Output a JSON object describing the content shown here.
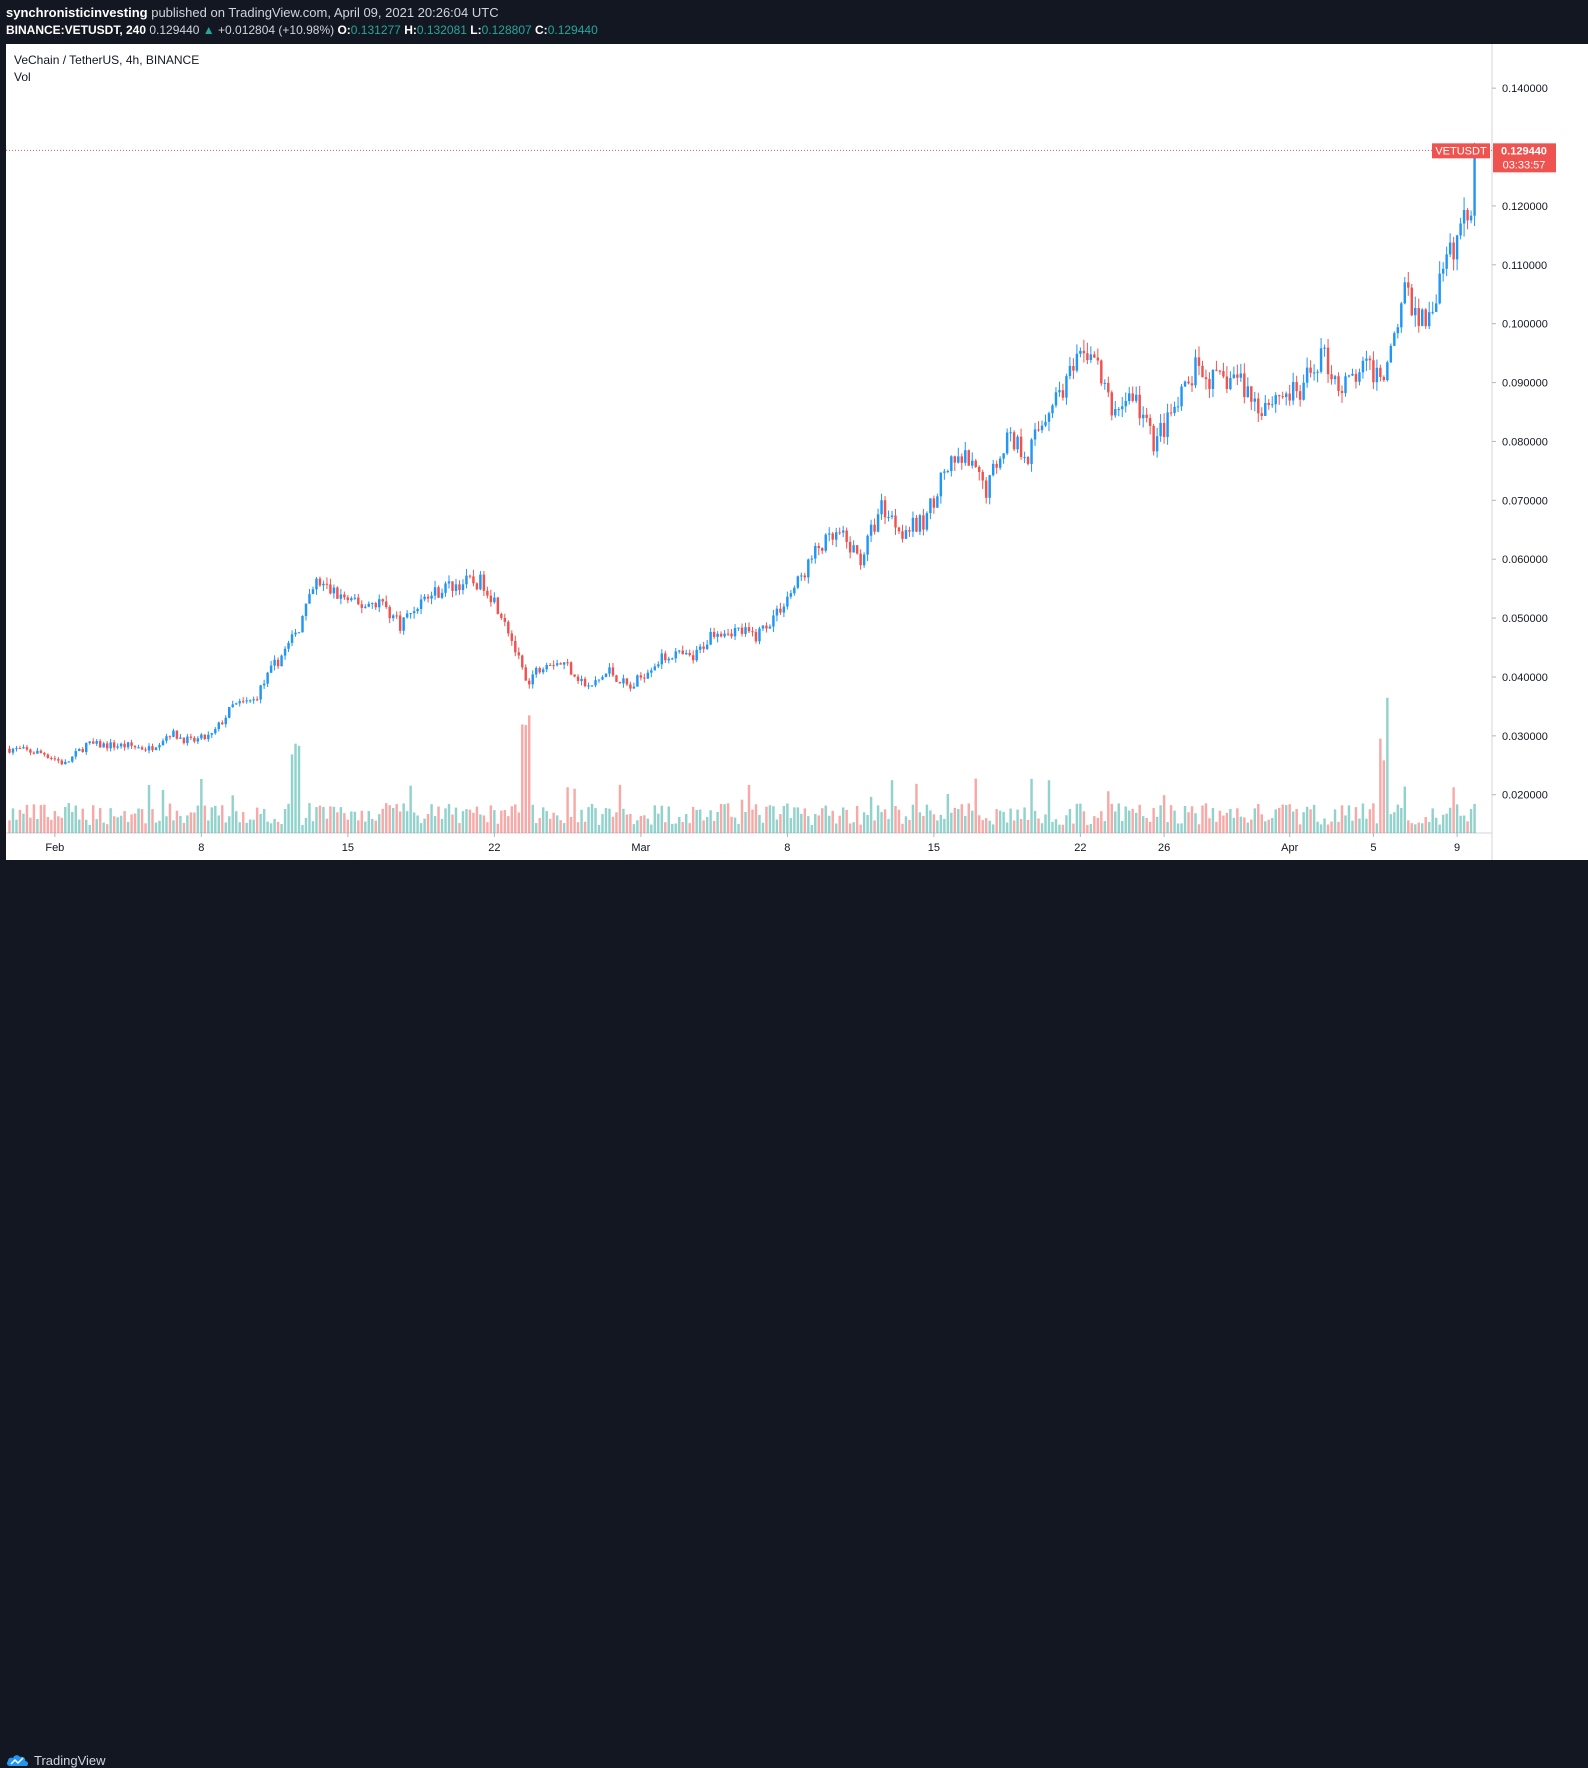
{
  "header": {
    "author": "synchronisticinvesting",
    "published": "published on TradingView.com, April 09, 2021 20:26:04 UTC",
    "symbol_line": "BINANCE:VETUSDT, 240",
    "last": "0.129440",
    "change_arrow": "▲",
    "change": "+0.012804 (+10.98%)",
    "o_label": "O:",
    "o_value": "0.131277",
    "h_label": "H:",
    "h_value": "0.132081",
    "l_label": "L:",
    "l_value": "0.128807",
    "c_label": "C:",
    "c_value": "0.129440"
  },
  "legend": {
    "title": "VeChain / TetherUS, 4h, BINANCE",
    "vol": "Vol"
  },
  "price_label": {
    "symbol": "VETUSDT",
    "price": "0.129440",
    "countdown": "03:33:57"
  },
  "footer": {
    "brand": "TradingView"
  },
  "colors": {
    "up": "#26a69a",
    "down": "#ef5350",
    "up_candle": "#2196f3",
    "down_candle": "#ef5350",
    "background": "#ffffff",
    "frame": "#131722"
  },
  "icons": {
    "logo": "tradingview-cloud-icon"
  },
  "chart_data": {
    "type": "candlestick",
    "title": "VeChain / TetherUS, 4h, BINANCE",
    "y_ticks": [
      "0.020000",
      "0.030000",
      "0.040000",
      "0.050000",
      "0.060000",
      "0.070000",
      "0.080000",
      "0.090000",
      "0.100000",
      "0.110000",
      "0.120000",
      "0.140000"
    ],
    "ylim": [
      0.0135,
      0.1475
    ],
    "x_ticks": [
      {
        "label": "Feb",
        "date": "2021-02-01"
      },
      {
        "label": "8",
        "date": "2021-02-08"
      },
      {
        "label": "15",
        "date": "2021-02-15"
      },
      {
        "label": "22",
        "date": "2021-02-22"
      },
      {
        "label": "Mar",
        "date": "2021-03-01"
      },
      {
        "label": "8",
        "date": "2021-03-08"
      },
      {
        "label": "15",
        "date": "2021-03-15"
      },
      {
        "label": "22",
        "date": "2021-03-22"
      },
      {
        "label": "26",
        "date": "2021-03-26"
      },
      {
        "label": "Apr",
        "date": "2021-04-01"
      },
      {
        "label": "5",
        "date": "2021-04-05"
      },
      {
        "label": "9",
        "date": "2021-04-09"
      }
    ],
    "xlim": [
      "2021-01-29T16:00",
      "2021-04-10T16:00"
    ],
    "last_price": 0.12944,
    "close_path": [
      {
        "date": "2021-01-29",
        "close": 0.028
      },
      {
        "date": "2021-01-31",
        "close": 0.027
      },
      {
        "date": "2021-02-01",
        "close": 0.0252
      },
      {
        "date": "2021-02-02",
        "close": 0.0285
      },
      {
        "date": "2021-02-04",
        "close": 0.0283
      },
      {
        "date": "2021-02-05",
        "close": 0.0278
      },
      {
        "date": "2021-02-06",
        "close": 0.0305
      },
      {
        "date": "2021-02-07",
        "close": 0.029
      },
      {
        "date": "2021-02-08",
        "close": 0.03
      },
      {
        "date": "2021-02-09",
        "close": 0.035
      },
      {
        "date": "2021-02-10",
        "close": 0.036
      },
      {
        "date": "2021-02-11",
        "close": 0.042
      },
      {
        "date": "2021-02-12",
        "close": 0.047
      },
      {
        "date": "2021-02-13",
        "close": 0.056
      },
      {
        "date": "2021-02-14",
        "close": 0.054
      },
      {
        "date": "2021-02-15",
        "close": 0.052
      },
      {
        "date": "2021-02-16",
        "close": 0.053
      },
      {
        "date": "2021-02-17",
        "close": 0.049
      },
      {
        "date": "2021-02-18",
        "close": 0.053
      },
      {
        "date": "2021-02-19",
        "close": 0.055
      },
      {
        "date": "2021-02-20",
        "close": 0.056
      },
      {
        "date": "2021-02-21",
        "close": 0.056
      },
      {
        "date": "2021-02-22",
        "close": 0.05
      },
      {
        "date": "2021-02-23",
        "close": 0.039
      },
      {
        "date": "2021-02-24",
        "close": 0.043
      },
      {
        "date": "2021-02-25",
        "close": 0.042
      },
      {
        "date": "2021-02-26",
        "close": 0.038
      },
      {
        "date": "2021-02-27",
        "close": 0.041
      },
      {
        "date": "2021-02-28",
        "close": 0.038
      },
      {
        "date": "2021-03-01",
        "close": 0.042
      },
      {
        "date": "2021-03-02",
        "close": 0.044
      },
      {
        "date": "2021-03-03",
        "close": 0.043
      },
      {
        "date": "2021-03-04",
        "close": 0.048
      },
      {
        "date": "2021-03-05",
        "close": 0.048
      },
      {
        "date": "2021-03-06",
        "close": 0.047
      },
      {
        "date": "2021-03-07",
        "close": 0.051
      },
      {
        "date": "2021-03-08",
        "close": 0.056
      },
      {
        "date": "2021-03-09",
        "close": 0.062
      },
      {
        "date": "2021-03-10",
        "close": 0.064
      },
      {
        "date": "2021-03-11",
        "close": 0.06
      },
      {
        "date": "2021-03-12",
        "close": 0.069
      },
      {
        "date": "2021-03-13",
        "close": 0.065
      },
      {
        "date": "2021-03-14",
        "close": 0.066
      },
      {
        "date": "2021-03-15",
        "close": 0.075
      },
      {
        "date": "2021-03-16",
        "close": 0.077
      },
      {
        "date": "2021-03-17",
        "close": 0.072
      },
      {
        "date": "2021-03-18",
        "close": 0.081
      },
      {
        "date": "2021-03-19",
        "close": 0.078
      },
      {
        "date": "2021-03-20",
        "close": 0.086
      },
      {
        "date": "2021-03-21",
        "close": 0.091
      },
      {
        "date": "2021-03-22",
        "close": 0.096
      },
      {
        "date": "2021-03-23",
        "close": 0.085
      },
      {
        "date": "2021-03-24",
        "close": 0.088
      },
      {
        "date": "2021-03-25",
        "close": 0.08
      },
      {
        "date": "2021-03-26",
        "close": 0.085
      },
      {
        "date": "2021-03-27",
        "close": 0.092
      },
      {
        "date": "2021-03-28",
        "close": 0.09
      },
      {
        "date": "2021-03-29",
        "close": 0.091
      },
      {
        "date": "2021-03-30",
        "close": 0.086
      },
      {
        "date": "2021-03-31",
        "close": 0.088
      },
      {
        "date": "2021-04-01",
        "close": 0.088
      },
      {
        "date": "2021-04-02",
        "close": 0.095
      },
      {
        "date": "2021-04-03",
        "close": 0.089
      },
      {
        "date": "2021-04-04",
        "close": 0.092
      },
      {
        "date": "2021-04-05",
        "close": 0.092
      },
      {
        "date": "2021-04-06",
        "close": 0.105
      },
      {
        "date": "2021-04-07",
        "close": 0.1
      },
      {
        "date": "2021-04-08",
        "close": 0.11
      },
      {
        "date": "2021-04-09",
        "close": 0.119
      },
      {
        "date": "2021-04-10",
        "close": 0.1294
      }
    ],
    "volume_spikes": [
      {
        "date": "2021-02-12",
        "volume": "high"
      },
      {
        "date": "2021-02-23",
        "volume": "high"
      },
      {
        "date": "2021-04-05",
        "volume": "high"
      }
    ]
  }
}
